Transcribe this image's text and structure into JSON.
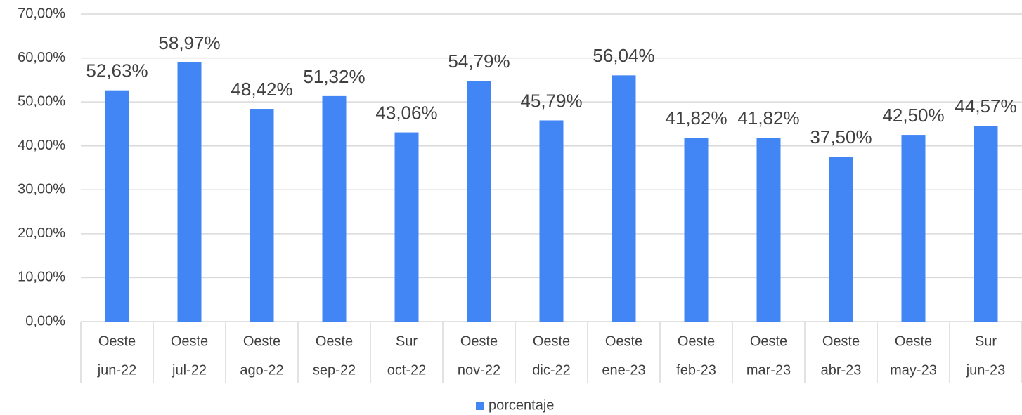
{
  "chart_data": {
    "type": "bar",
    "categories": [
      "jun-22",
      "jul-22",
      "ago-22",
      "sep-22",
      "oct-22",
      "nov-22",
      "dic-22",
      "ene-23",
      "feb-23",
      "mar-23",
      "abr-23",
      "may-23",
      "jun-23"
    ],
    "category_groups": [
      "Oeste",
      "Oeste",
      "Oeste",
      "Oeste",
      "Sur",
      "Oeste",
      "Oeste",
      "Oeste",
      "Oeste",
      "Oeste",
      "Oeste",
      "Oeste",
      "Sur"
    ],
    "series": [
      {
        "name": "porcentaje",
        "color": "#4285f4",
        "values": [
          52.63,
          58.97,
          48.42,
          51.32,
          43.06,
          54.79,
          45.79,
          56.04,
          41.82,
          41.82,
          37.5,
          42.5,
          44.57
        ],
        "value_labels": [
          "52,63%",
          "58,97%",
          "48,42%",
          "51,32%",
          "43,06%",
          "54,79%",
          "45,79%",
          "56,04%",
          "41,82%",
          "41,82%",
          "37,50%",
          "42,50%",
          "44,57%"
        ]
      }
    ],
    "ylim": [
      0,
      70
    ],
    "yticks": [
      {
        "value": 0,
        "label": "0,00%"
      },
      {
        "value": 10,
        "label": "10,00%"
      },
      {
        "value": 20,
        "label": "20,00%"
      },
      {
        "value": 30,
        "label": "30,00%"
      },
      {
        "value": 40,
        "label": "40,00%"
      },
      {
        "value": 50,
        "label": "50,00%"
      },
      {
        "value": 60,
        "label": "60,00%"
      },
      {
        "value": 70,
        "label": "70,00%"
      }
    ],
    "grid": true,
    "legend": "bottom"
  }
}
